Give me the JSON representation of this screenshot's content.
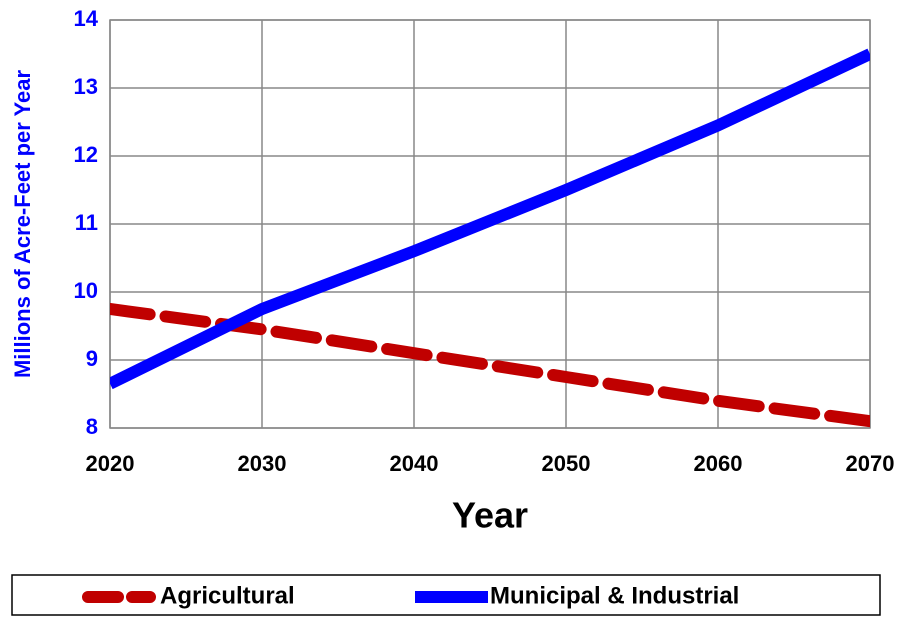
{
  "chart_data": {
    "type": "line",
    "x_label": "Year",
    "y_label": "Millions of Acre-Feet per Year",
    "x": [
      2020,
      2030,
      2040,
      2050,
      2060,
      2070
    ],
    "series": [
      {
        "name": "Agricultural",
        "color": "#c00000",
        "dash": true,
        "values": [
          9.75,
          9.45,
          9.1,
          8.75,
          8.4,
          8.1
        ]
      },
      {
        "name": "Municipal & Industrial",
        "color": "#0000ff",
        "dash": false,
        "values": [
          8.65,
          9.75,
          10.6,
          11.5,
          12.45,
          13.5
        ]
      }
    ],
    "xlim": [
      2020,
      2070
    ],
    "xticks": [
      2020,
      2030,
      2040,
      2050,
      2060,
      2070
    ],
    "ylim": [
      8,
      14
    ],
    "yticks": [
      8,
      9,
      10,
      11,
      12,
      13,
      14
    ],
    "grid": true,
    "legend": "bottom"
  }
}
